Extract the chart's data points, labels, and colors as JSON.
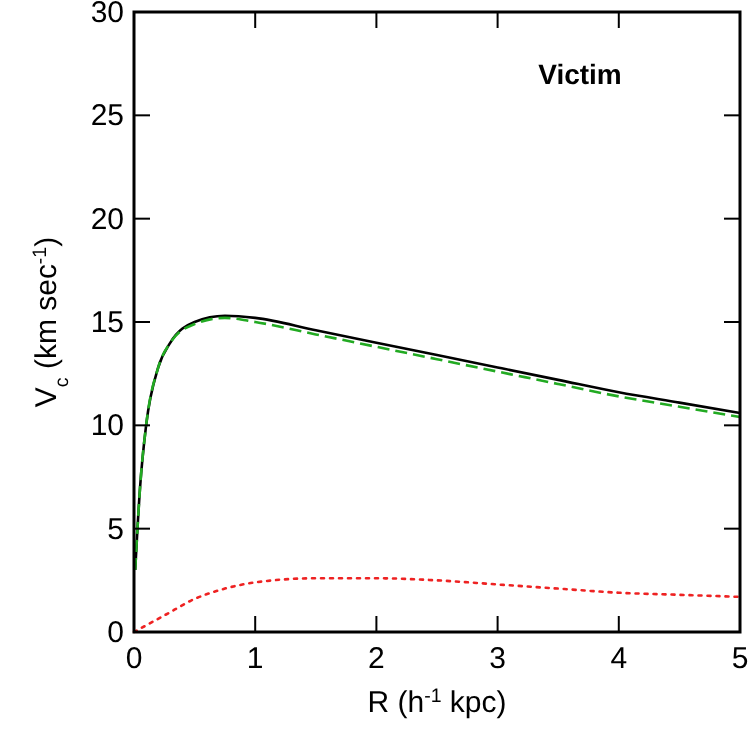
{
  "chart_data": {
    "type": "line",
    "xlabel": "R (h$^{-1}$ kpc)",
    "ylabel": "V$_{c}$ (km sec$^{-1}$)",
    "annotations": [
      "Victim"
    ],
    "xlim": [
      0,
      5
    ],
    "ylim": [
      0,
      30
    ],
    "xticks": [
      0,
      1,
      2,
      3,
      4,
      5
    ],
    "yticks": [
      0,
      5,
      10,
      15,
      20,
      25,
      30
    ],
    "series": [
      {
        "color": "#000000",
        "line_style": "solid",
        "x": [
          0.01,
          0.05,
          0.1,
          0.2,
          0.3,
          0.5,
          0.75,
          1,
          1.5,
          2,
          2.5,
          3,
          3.5,
          4,
          4.5,
          5
        ],
        "values": [
          3,
          7,
          10,
          12.8,
          14,
          15,
          15.3,
          15.2,
          14.6,
          14,
          13.4,
          12.8,
          12.2,
          11.6,
          11.1,
          10.6
        ]
      },
      {
        "color": "#22aa22",
        "line_style": "dashed",
        "x": [
          0.01,
          0.05,
          0.1,
          0.2,
          0.3,
          0.5,
          0.75,
          1,
          1.5,
          2,
          2.5,
          3,
          3.5,
          4,
          4.5,
          5
        ],
        "values": [
          3,
          7,
          10,
          12.8,
          14,
          14.9,
          15.2,
          15,
          14.4,
          13.8,
          13.2,
          12.6,
          12,
          11.4,
          10.9,
          10.4
        ]
      },
      {
        "color": "#ee2222",
        "line_style": "dotted",
        "x": [
          0,
          0.25,
          0.5,
          0.75,
          1,
          1.5,
          2,
          2.5,
          3,
          3.5,
          4,
          4.5,
          5
        ],
        "values": [
          0,
          0.8,
          1.6,
          2.1,
          2.4,
          2.6,
          2.6,
          2.5,
          2.3,
          2.1,
          1.9,
          1.8,
          1.7
        ]
      }
    ]
  }
}
